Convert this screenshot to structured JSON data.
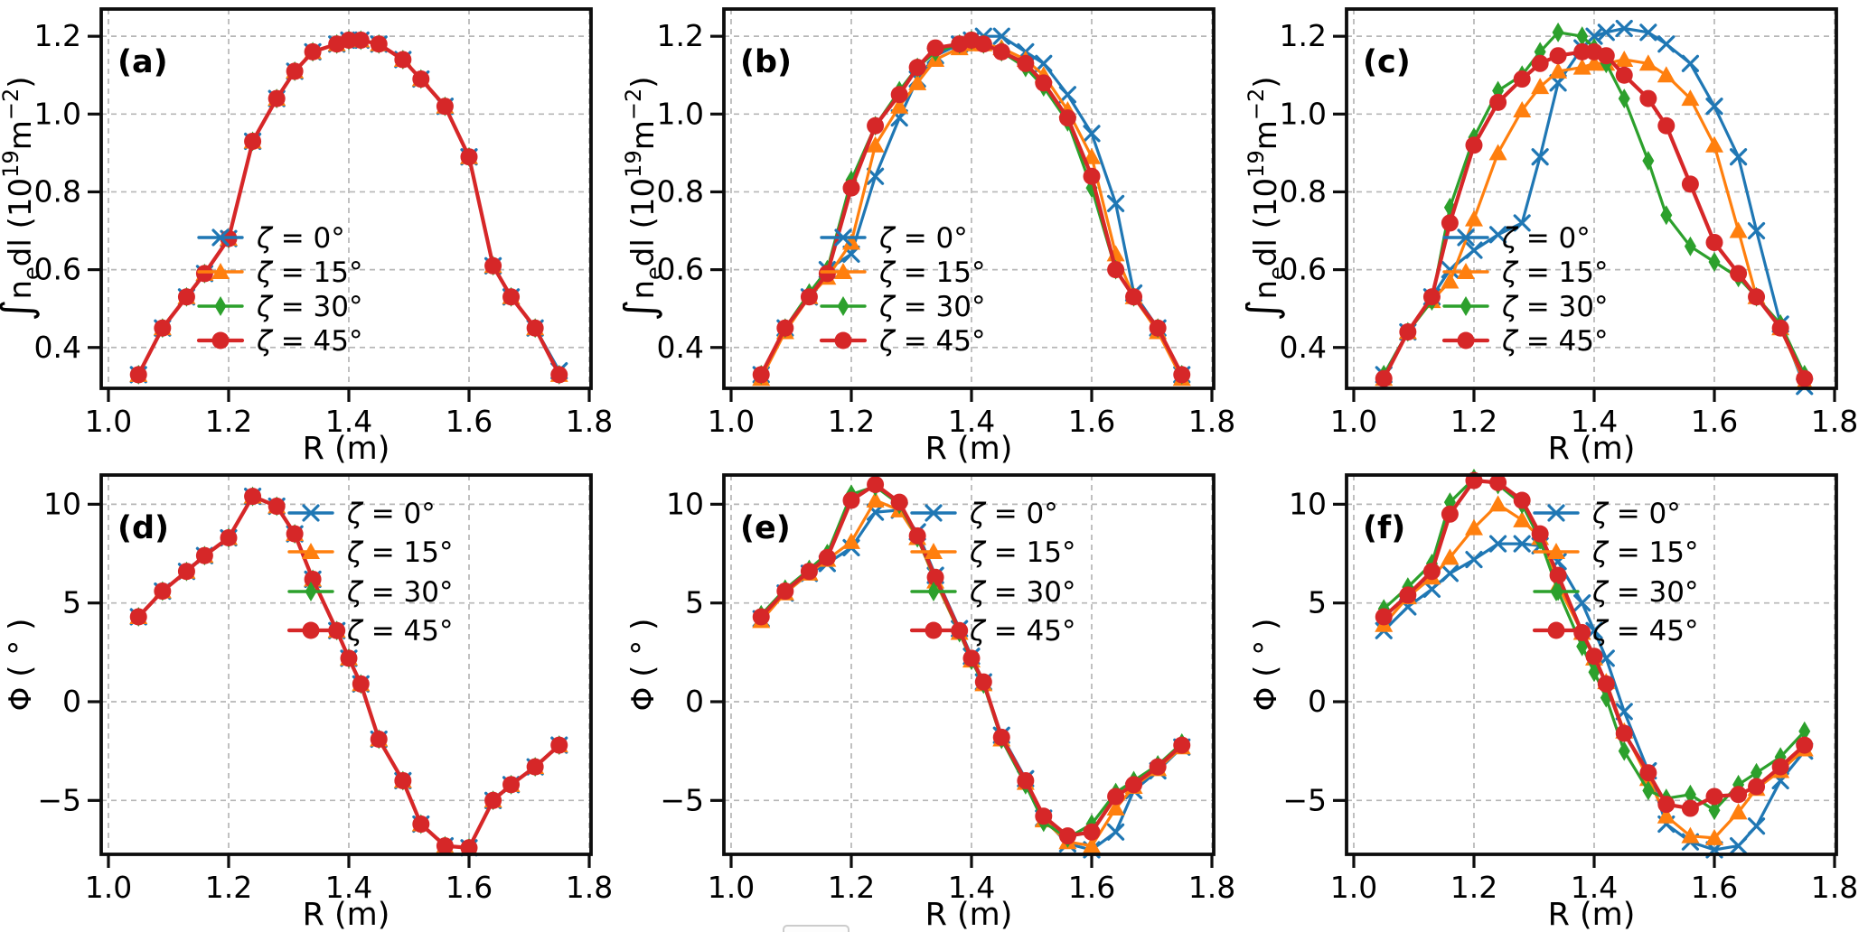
{
  "figure": {
    "background": "#ffffff",
    "grid_color": "#b6b6b6",
    "spine_color": "#0d0d0d",
    "tick_color": "#0d0d0d",
    "text_color": "#000000",
    "artifact_note": "top edge of a cropped legend box at bottom centre"
  },
  "legend_labels": [
    "ζ = 0°",
    "ζ = 15°",
    "ζ = 30°",
    "ζ = 45°"
  ],
  "series_styles": [
    {
      "name": "ζ = 0°",
      "color": "#1f77b4",
      "marker": "x"
    },
    {
      "name": "ζ = 15°",
      "color": "#ff7f0e",
      "marker": "triangle-up"
    },
    {
      "name": "ζ = 30°",
      "color": "#2ca02c",
      "marker": "thin-diamond"
    },
    {
      "name": "ζ = 45°",
      "color": "#d62728",
      "marker": "circle"
    }
  ],
  "chart_data": [
    {
      "type": "line",
      "key": "a",
      "panel_label": "(a)",
      "row": "top",
      "xlabel": "R (m)",
      "ylabel": "∫nₑdl (10¹⁹m⁻²)",
      "ylabel_segments": [
        {
          "t": "∫",
          "big": true
        },
        {
          "t": "n"
        },
        {
          "t": "e",
          "sub": true
        },
        {
          "t": "dl (10"
        },
        {
          "t": "19",
          "sup": true
        },
        {
          "t": "m"
        },
        {
          "t": "−2",
          "sup": true
        },
        {
          "t": ")"
        }
      ],
      "xlim": [
        0.988,
        1.803
      ],
      "ylim": [
        0.295,
        1.27
      ],
      "xticks": [
        1.0,
        1.2,
        1.4,
        1.6,
        1.8
      ],
      "xtick_labels": [
        "1.0",
        "1.2",
        "1.4",
        "1.6",
        "1.8"
      ],
      "yticks": [
        0.4,
        0.6,
        0.8,
        1.0,
        1.2
      ],
      "ytick_labels": [
        "0.4",
        "0.6",
        "0.8",
        "1.0",
        "1.2"
      ],
      "grid": true,
      "legend_position": "inside-lower-center",
      "x": [
        1.05,
        1.09,
        1.13,
        1.16,
        1.2,
        1.24,
        1.28,
        1.31,
        1.34,
        1.38,
        1.4,
        1.42,
        1.45,
        1.49,
        1.52,
        1.56,
        1.6,
        1.64,
        1.67,
        1.71,
        1.75
      ],
      "series": [
        {
          "name": "ζ = 0°",
          "values": [
            0.33,
            0.45,
            0.53,
            0.59,
            0.68,
            0.93,
            1.04,
            1.11,
            1.16,
            1.18,
            1.19,
            1.19,
            1.18,
            1.14,
            1.09,
            1.02,
            0.89,
            0.61,
            0.53,
            0.45,
            0.34
          ]
        },
        {
          "name": "ζ = 15°",
          "values": [
            0.33,
            0.45,
            0.53,
            0.59,
            0.68,
            0.93,
            1.04,
            1.11,
            1.16,
            1.18,
            1.19,
            1.19,
            1.18,
            1.14,
            1.09,
            1.02,
            0.89,
            0.61,
            0.53,
            0.45,
            0.33
          ]
        },
        {
          "name": "ζ = 30°",
          "values": [
            0.33,
            0.45,
            0.53,
            0.59,
            0.68,
            0.93,
            1.04,
            1.11,
            1.16,
            1.18,
            1.19,
            1.19,
            1.18,
            1.14,
            1.09,
            1.02,
            0.89,
            0.61,
            0.53,
            0.45,
            0.33
          ]
        },
        {
          "name": "ζ = 45°",
          "values": [
            0.33,
            0.45,
            0.53,
            0.59,
            0.68,
            0.93,
            1.04,
            1.11,
            1.16,
            1.18,
            1.19,
            1.19,
            1.18,
            1.14,
            1.09,
            1.02,
            0.89,
            0.61,
            0.53,
            0.45,
            0.33
          ]
        }
      ]
    },
    {
      "type": "line",
      "key": "b",
      "panel_label": "(b)",
      "row": "top",
      "xlabel": "R (m)",
      "ylabel": "∫nₑdl (10¹⁹m⁻²)",
      "ylabel_segments": [
        {
          "t": "∫",
          "big": true
        },
        {
          "t": "n"
        },
        {
          "t": "e",
          "sub": true
        },
        {
          "t": "dl (10"
        },
        {
          "t": "19",
          "sup": true
        },
        {
          "t": "m"
        },
        {
          "t": "−2",
          "sup": true
        },
        {
          "t": ")"
        }
      ],
      "xlim": [
        0.988,
        1.803
      ],
      "ylim": [
        0.295,
        1.27
      ],
      "xticks": [
        1.0,
        1.2,
        1.4,
        1.6,
        1.8
      ],
      "xtick_labels": [
        "1.0",
        "1.2",
        "1.4",
        "1.6",
        "1.8"
      ],
      "yticks": [
        0.4,
        0.6,
        0.8,
        1.0,
        1.2
      ],
      "ytick_labels": [
        "0.4",
        "0.6",
        "0.8",
        "1.0",
        "1.2"
      ],
      "grid": true,
      "legend_position": "inside-lower-center",
      "x": [
        1.05,
        1.09,
        1.13,
        1.16,
        1.2,
        1.24,
        1.28,
        1.31,
        1.34,
        1.38,
        1.4,
        1.42,
        1.45,
        1.49,
        1.52,
        1.56,
        1.6,
        1.64,
        1.67,
        1.71,
        1.75
      ],
      "series": [
        {
          "name": "ζ = 0°",
          "values": [
            0.33,
            0.45,
            0.53,
            0.6,
            0.64,
            0.84,
            0.99,
            1.09,
            1.15,
            1.18,
            1.19,
            1.2,
            1.2,
            1.16,
            1.13,
            1.05,
            0.95,
            0.77,
            0.54,
            0.45,
            0.33
          ]
        },
        {
          "name": "ζ = 15°",
          "values": [
            0.32,
            0.44,
            0.53,
            0.58,
            0.67,
            0.92,
            1.02,
            1.08,
            1.14,
            1.17,
            1.18,
            1.18,
            1.17,
            1.14,
            1.1,
            1.01,
            0.89,
            0.64,
            0.53,
            0.44,
            0.32
          ]
        },
        {
          "name": "ζ = 30°",
          "values": [
            0.33,
            0.45,
            0.54,
            0.6,
            0.83,
            0.97,
            1.06,
            1.12,
            1.16,
            1.18,
            1.19,
            1.18,
            1.16,
            1.12,
            1.07,
            0.98,
            0.81,
            0.6,
            0.53,
            0.45,
            0.33
          ]
        },
        {
          "name": "ζ = 45°",
          "values": [
            0.33,
            0.45,
            0.53,
            0.59,
            0.81,
            0.97,
            1.05,
            1.12,
            1.17,
            1.18,
            1.19,
            1.18,
            1.16,
            1.13,
            1.08,
            0.99,
            0.84,
            0.6,
            0.53,
            0.45,
            0.33
          ]
        }
      ]
    },
    {
      "type": "line",
      "key": "c",
      "panel_label": "(c)",
      "row": "top",
      "xlabel": "R (m)",
      "ylabel": "∫nₑdl (10¹⁹m⁻²)",
      "ylabel_segments": [
        {
          "t": "∫",
          "big": true
        },
        {
          "t": "n"
        },
        {
          "t": "e",
          "sub": true
        },
        {
          "t": "dl (10"
        },
        {
          "t": "19",
          "sup": true
        },
        {
          "t": "m"
        },
        {
          "t": "−2",
          "sup": true
        },
        {
          "t": ")"
        }
      ],
      "xlim": [
        0.988,
        1.803
      ],
      "ylim": [
        0.295,
        1.27
      ],
      "xticks": [
        1.0,
        1.2,
        1.4,
        1.6,
        1.8
      ],
      "xtick_labels": [
        "1.0",
        "1.2",
        "1.4",
        "1.6",
        "1.8"
      ],
      "yticks": [
        0.4,
        0.6,
        0.8,
        1.0,
        1.2
      ],
      "ytick_labels": [
        "0.4",
        "0.6",
        "0.8",
        "1.0",
        "1.2"
      ],
      "grid": true,
      "legend_position": "inside-lower-center",
      "x": [
        1.05,
        1.09,
        1.13,
        1.16,
        1.2,
        1.24,
        1.28,
        1.31,
        1.34,
        1.38,
        1.4,
        1.42,
        1.45,
        1.49,
        1.52,
        1.56,
        1.6,
        1.64,
        1.67,
        1.71,
        1.75
      ],
      "series": [
        {
          "name": "ζ = 0°",
          "values": [
            0.33,
            0.44,
            0.53,
            0.6,
            0.65,
            0.69,
            0.72,
            0.89,
            1.08,
            1.17,
            1.2,
            1.21,
            1.22,
            1.21,
            1.18,
            1.13,
            1.02,
            0.89,
            0.7,
            0.46,
            0.3
          ]
        },
        {
          "name": "ζ = 15°",
          "values": [
            0.32,
            0.44,
            0.52,
            0.57,
            0.73,
            0.9,
            1.01,
            1.07,
            1.11,
            1.12,
            1.13,
            1.13,
            1.14,
            1.13,
            1.1,
            1.04,
            0.92,
            0.7,
            0.53,
            0.45,
            0.31
          ]
        },
        {
          "name": "ζ = 30°",
          "values": [
            0.33,
            0.44,
            0.52,
            0.76,
            0.94,
            1.06,
            1.1,
            1.16,
            1.21,
            1.2,
            1.17,
            1.13,
            1.04,
            0.88,
            0.74,
            0.66,
            0.62,
            0.58,
            0.53,
            0.46,
            0.33
          ]
        },
        {
          "name": "ζ = 45°",
          "values": [
            0.32,
            0.44,
            0.53,
            0.72,
            0.92,
            1.03,
            1.09,
            1.13,
            1.15,
            1.16,
            1.16,
            1.15,
            1.1,
            1.04,
            0.97,
            0.82,
            0.67,
            0.59,
            0.53,
            0.45,
            0.32
          ]
        }
      ]
    },
    {
      "type": "line",
      "key": "d",
      "panel_label": "(d)",
      "row": "bottom",
      "xlabel": "R (m)",
      "ylabel": "Φ ( ° )",
      "ylabel_segments": [
        {
          "t": "Φ ( ° )"
        }
      ],
      "xlim": [
        0.988,
        1.803
      ],
      "ylim": [
        -7.73,
        11.48
      ],
      "xticks": [
        1.0,
        1.2,
        1.4,
        1.6,
        1.8
      ],
      "xtick_labels": [
        "1.0",
        "1.2",
        "1.4",
        "1.6",
        "1.8"
      ],
      "yticks": [
        -5,
        0,
        5,
        10
      ],
      "ytick_labels": [
        "−5",
        "0",
        "5",
        "10"
      ],
      "grid": true,
      "legend_position": "upper-right",
      "x": [
        1.05,
        1.09,
        1.13,
        1.16,
        1.2,
        1.24,
        1.28,
        1.31,
        1.34,
        1.38,
        1.4,
        1.42,
        1.45,
        1.49,
        1.52,
        1.56,
        1.6,
        1.64,
        1.67,
        1.71,
        1.75
      ],
      "series": [
        {
          "name": "ζ = 0°",
          "values": [
            4.3,
            5.6,
            6.6,
            7.4,
            8.3,
            10.4,
            9.9,
            8.5,
            6.2,
            3.6,
            2.2,
            0.9,
            -1.9,
            -4.0,
            -6.2,
            -7.3,
            -7.4,
            -5.0,
            -4.2,
            -3.3,
            -2.2
          ]
        },
        {
          "name": "ζ = 15°",
          "values": [
            4.3,
            5.6,
            6.6,
            7.4,
            8.3,
            10.4,
            9.9,
            8.5,
            6.2,
            3.6,
            2.2,
            0.9,
            -1.9,
            -4.0,
            -6.2,
            -7.3,
            -7.4,
            -5.0,
            -4.2,
            -3.3,
            -2.2
          ]
        },
        {
          "name": "ζ = 30°",
          "values": [
            4.3,
            5.6,
            6.6,
            7.4,
            8.3,
            10.4,
            9.9,
            8.5,
            6.2,
            3.6,
            2.2,
            0.9,
            -1.9,
            -4.0,
            -6.2,
            -7.3,
            -7.4,
            -5.0,
            -4.2,
            -3.3,
            -2.2
          ]
        },
        {
          "name": "ζ = 45°",
          "values": [
            4.3,
            5.6,
            6.6,
            7.4,
            8.3,
            10.4,
            9.9,
            8.5,
            6.2,
            3.6,
            2.2,
            0.9,
            -1.9,
            -4.0,
            -6.2,
            -7.3,
            -7.4,
            -5.0,
            -4.2,
            -3.3,
            -2.2
          ]
        }
      ]
    },
    {
      "type": "line",
      "key": "e",
      "panel_label": "(e)",
      "row": "bottom",
      "xlabel": "R (m)",
      "ylabel": "Φ ( ° )",
      "ylabel_segments": [
        {
          "t": "Φ ( ° )"
        }
      ],
      "xlim": [
        0.988,
        1.803
      ],
      "ylim": [
        -7.73,
        11.48
      ],
      "xticks": [
        1.0,
        1.2,
        1.4,
        1.6,
        1.8
      ],
      "xtick_labels": [
        "1.0",
        "1.2",
        "1.4",
        "1.6",
        "1.8"
      ],
      "yticks": [
        -5,
        0,
        5,
        10
      ],
      "ytick_labels": [
        "−5",
        "0",
        "5",
        "10"
      ],
      "grid": true,
      "legend_position": "upper-right",
      "x": [
        1.05,
        1.09,
        1.13,
        1.16,
        1.2,
        1.24,
        1.28,
        1.31,
        1.34,
        1.38,
        1.4,
        1.42,
        1.45,
        1.49,
        1.52,
        1.56,
        1.6,
        1.64,
        1.67,
        1.71,
        1.75
      ],
      "series": [
        {
          "name": "ζ = 0°",
          "values": [
            4.2,
            5.5,
            6.5,
            7.0,
            7.8,
            9.6,
            9.7,
            8.6,
            6.4,
            3.7,
            2.3,
            1.0,
            -1.7,
            -3.9,
            -5.9,
            -7.2,
            -7.5,
            -6.6,
            -4.5,
            -3.5,
            -2.3
          ]
        },
        {
          "name": "ζ = 15°",
          "values": [
            4.1,
            5.5,
            6.5,
            7.2,
            8.1,
            10.2,
            9.7,
            8.3,
            6.1,
            3.5,
            2.1,
            0.9,
            -1.9,
            -4.1,
            -6.0,
            -7.1,
            -7.3,
            -5.4,
            -4.3,
            -3.4,
            -2.3
          ]
        },
        {
          "name": "ζ = 30°",
          "values": [
            4.4,
            5.7,
            6.7,
            7.5,
            10.5,
            10.9,
            10.0,
            8.3,
            6.2,
            3.5,
            2.1,
            0.9,
            -1.9,
            -4.2,
            -6.1,
            -6.9,
            -6.2,
            -4.6,
            -4.0,
            -3.2,
            -2.1
          ]
        },
        {
          "name": "ζ = 45°",
          "values": [
            4.3,
            5.6,
            6.6,
            7.3,
            10.2,
            11.0,
            10.1,
            8.4,
            6.3,
            3.6,
            2.2,
            1.0,
            -1.8,
            -4.0,
            -5.8,
            -6.8,
            -6.6,
            -4.8,
            -4.2,
            -3.3,
            -2.2
          ]
        }
      ]
    },
    {
      "type": "line",
      "key": "f",
      "panel_label": "(f)",
      "row": "bottom",
      "xlabel": "R (m)",
      "ylabel": "Φ ( ° )",
      "ylabel_segments": [
        {
          "t": "Φ ( ° )"
        }
      ],
      "xlim": [
        0.988,
        1.803
      ],
      "ylim": [
        -7.73,
        11.48
      ],
      "xticks": [
        1.0,
        1.2,
        1.4,
        1.6,
        1.8
      ],
      "xtick_labels": [
        "1.0",
        "1.2",
        "1.4",
        "1.6",
        "1.8"
      ],
      "yticks": [
        -5,
        0,
        5,
        10
      ],
      "ytick_labels": [
        "−5",
        "0",
        "5",
        "10"
      ],
      "grid": true,
      "legend_position": "upper-right",
      "x": [
        1.05,
        1.09,
        1.13,
        1.16,
        1.2,
        1.24,
        1.28,
        1.31,
        1.34,
        1.38,
        1.4,
        1.42,
        1.45,
        1.49,
        1.52,
        1.56,
        1.6,
        1.64,
        1.67,
        1.71,
        1.75
      ],
      "series": [
        {
          "name": "ζ = 0°",
          "values": [
            3.6,
            4.8,
            5.7,
            6.5,
            7.2,
            8.0,
            8.0,
            7.9,
            7.1,
            5.0,
            3.6,
            2.2,
            -0.5,
            -3.5,
            -6.2,
            -7.1,
            -7.5,
            -7.3,
            -6.3,
            -4.0,
            -2.5
          ]
        },
        {
          "name": "ζ = 15°",
          "values": [
            3.9,
            5.3,
            6.3,
            7.3,
            8.8,
            10.0,
            9.2,
            8.3,
            5.9,
            3.5,
            2.2,
            1.0,
            -1.5,
            -3.9,
            -5.8,
            -6.8,
            -6.9,
            -5.6,
            -4.4,
            -3.5,
            -2.4
          ]
        },
        {
          "name": "ζ = 30°",
          "values": [
            4.7,
            5.8,
            7.0,
            10.1,
            11.3,
            11.0,
            10.0,
            8.2,
            5.6,
            2.8,
            1.5,
            0.2,
            -2.5,
            -4.5,
            -4.9,
            -4.7,
            -5.5,
            -4.2,
            -3.6,
            -2.8,
            -1.5
          ]
        },
        {
          "name": "ζ = 45°",
          "values": [
            4.3,
            5.4,
            6.6,
            9.5,
            11.2,
            11.1,
            10.2,
            8.5,
            6.4,
            3.5,
            2.3,
            0.9,
            -1.6,
            -3.6,
            -5.2,
            -5.4,
            -4.8,
            -4.7,
            -4.3,
            -3.3,
            -2.2
          ]
        }
      ]
    }
  ]
}
